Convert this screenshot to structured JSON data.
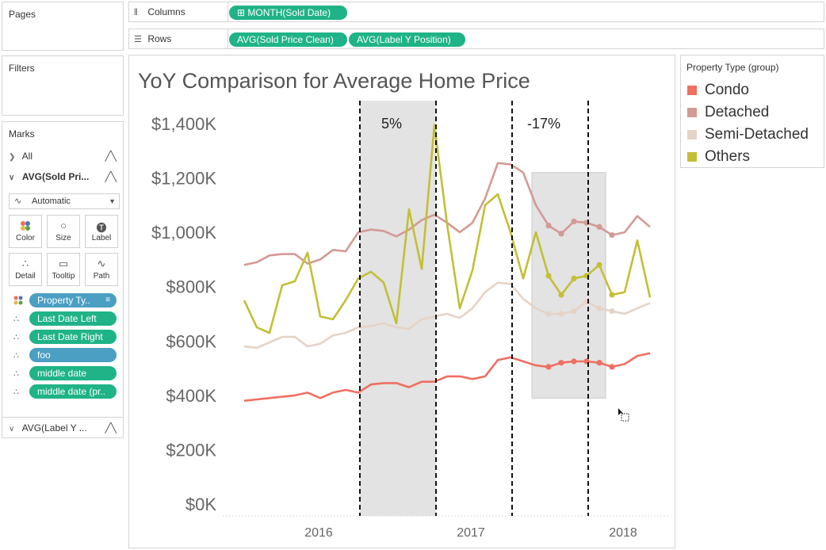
{
  "pages": {
    "title": "Pages"
  },
  "filters": {
    "title": "Filters"
  },
  "marks": {
    "title": "Marks",
    "all_label": "All",
    "measure_label": "AVG(Sold Pri...",
    "mark_type": "Automatic",
    "buttons": [
      "Color",
      "Size",
      "Label",
      "Detail",
      "Tooltip",
      "Path"
    ],
    "fields": [
      "Property Ty..",
      "Last Date Left",
      "Last Date Right",
      "foo",
      "middle date",
      "middle date (pr.."
    ],
    "bottom_label": "AVG(Label Y ..."
  },
  "shelves": {
    "columns_label": "Columns",
    "columns_pills": [
      "MONTH(Sold Date)"
    ],
    "rows_label": "Rows",
    "rows_pills": [
      "AVG(Sold Price Clean)",
      "AVG(Label Y Position)"
    ]
  },
  "legend": {
    "title": "Property Type (group)",
    "items": [
      {
        "label": "Condo",
        "color": "#ef6f61"
      },
      {
        "label": "Detached",
        "color": "#d49a94"
      },
      {
        "label": "Semi-Detached",
        "color": "#e6d3c5"
      },
      {
        "label": "Others",
        "color": "#c2bf37"
      }
    ]
  },
  "chart_data": {
    "type": "line",
    "title": "YoY Comparison for Average Home Price",
    "ylim": [
      0,
      1400000
    ],
    "y_ticks": [
      "$1,400K",
      "$1,200K",
      "$1,000K",
      "$800K",
      "$600K",
      "$400K",
      "$200K",
      "$0K"
    ],
    "y_tick_values": [
      1400000,
      1200000,
      1000000,
      800000,
      600000,
      400000,
      200000,
      0
    ],
    "x_ticks": [
      "2016",
      "2017",
      "2018"
    ],
    "x_tick_values": [
      "2016-01",
      "2017-01",
      "2018-01"
    ],
    "x": [
      "2015-07",
      "2015-08",
      "2015-09",
      "2015-10",
      "2015-11",
      "2015-12",
      "2016-01",
      "2016-02",
      "2016-03",
      "2016-04",
      "2016-05",
      "2016-06",
      "2016-07",
      "2016-08",
      "2016-09",
      "2016-10",
      "2016-11",
      "2016-12",
      "2017-01",
      "2017-02",
      "2017-03",
      "2017-04",
      "2017-05",
      "2017-06",
      "2017-07",
      "2017-08",
      "2017-09",
      "2017-10",
      "2017-11",
      "2017-12",
      "2018-01",
      "2018-02",
      "2018-03"
    ],
    "series": [
      {
        "name": "Condo",
        "color": "#ef6f61",
        "values": [
          380000,
          385000,
          390000,
          395000,
          400000,
          410000,
          390000,
          410000,
          420000,
          410000,
          440000,
          445000,
          445000,
          430000,
          450000,
          450000,
          470000,
          470000,
          460000,
          470000,
          530000,
          540000,
          525000,
          510000,
          505000,
          520000,
          525000,
          525000,
          520000,
          505000,
          515000,
          545000,
          555000
        ]
      },
      {
        "name": "Detached",
        "color": "#d49a94",
        "values": [
          880000,
          890000,
          915000,
          920000,
          920000,
          885000,
          900000,
          935000,
          930000,
          1000000,
          1010000,
          1005000,
          985000,
          1010000,
          1045000,
          1065000,
          1035000,
          1000000,
          1035000,
          1125000,
          1255000,
          1250000,
          1220000,
          1100000,
          1025000,
          995000,
          1040000,
          1035000,
          1020000,
          990000,
          1000000,
          1060000,
          1020000
        ]
      },
      {
        "name": "Semi-Detached",
        "color": "#e6d3c5",
        "values": [
          580000,
          575000,
          595000,
          615000,
          615000,
          580000,
          590000,
          620000,
          630000,
          650000,
          655000,
          665000,
          650000,
          645000,
          680000,
          690000,
          700000,
          685000,
          720000,
          780000,
          815000,
          810000,
          755000,
          720000,
          700000,
          700000,
          710000,
          745000,
          720000,
          710000,
          700000,
          720000,
          740000
        ]
      },
      {
        "name": "Others",
        "color": "#c2bf37",
        "values": [
          750000,
          650000,
          630000,
          805000,
          820000,
          925000,
          690000,
          680000,
          750000,
          830000,
          855000,
          815000,
          665000,
          1085000,
          865000,
          1395000,
          1030000,
          720000,
          860000,
          1100000,
          1140000,
          1000000,
          830000,
          1000000,
          840000,
          770000,
          830000,
          840000,
          880000,
          770000,
          780000,
          970000,
          760000
        ]
      }
    ],
    "annotations": [
      {
        "text": "5%",
        "band": [
          "2016-04",
          "2016-10"
        ]
      },
      {
        "text": "-17%",
        "band": [
          "2017-04",
          "2017-10"
        ]
      }
    ],
    "highlight_range": {
      "x": [
        "2017-06",
        "2017-11"
      ],
      "y": [
        390000,
        1220000
      ]
    },
    "marked_points": {
      "x_from": "2017-07",
      "x_to": "2017-12"
    },
    "grid": false,
    "legend_position": "right"
  }
}
